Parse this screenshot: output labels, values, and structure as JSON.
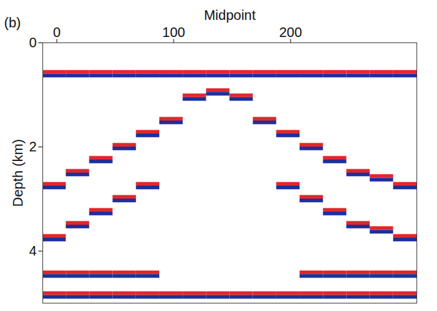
{
  "chart_data": {
    "type": "seismic",
    "panel_label": "(b)",
    "xlabel": "Midpoint",
    "ylabel": "Depth (km)",
    "xlim": [
      -12,
      308
    ],
    "xticks": [
      0,
      100,
      200
    ],
    "ylim": [
      0,
      5
    ],
    "yticks": [
      0,
      2,
      4
    ],
    "colors": [
      "#e3262b",
      "#1f2f9a"
    ],
    "gathers": [
      {
        "start": -12,
        "end": 8,
        "depths": [
          0.6,
          2.75,
          3.75,
          4.45,
          4.85
        ]
      },
      {
        "start": 8,
        "end": 28,
        "depths": [
          0.6,
          2.5,
          3.5,
          4.45,
          4.85
        ]
      },
      {
        "start": 28,
        "end": 48,
        "depths": [
          0.6,
          2.25,
          3.25,
          4.45,
          4.85
        ]
      },
      {
        "start": 48,
        "end": 68,
        "depths": [
          0.6,
          2.0,
          3.0,
          4.45,
          4.85
        ]
      },
      {
        "start": 68,
        "end": 88,
        "depths": [
          0.6,
          1.75,
          2.75,
          4.45,
          4.85
        ]
      },
      {
        "start": 88,
        "end": 108,
        "depths": [
          0.6,
          1.5,
          4.85
        ]
      },
      {
        "start": 108,
        "end": 128,
        "depths": [
          0.6,
          1.05,
          4.85
        ]
      },
      {
        "start": 128,
        "end": 148,
        "depths": [
          0.6,
          0.95,
          4.85
        ]
      },
      {
        "start": 148,
        "end": 168,
        "depths": [
          0.6,
          1.05,
          4.85
        ]
      },
      {
        "start": 168,
        "end": 188,
        "depths": [
          0.6,
          1.5,
          4.85
        ]
      },
      {
        "start": 188,
        "end": 208,
        "depths": [
          0.6,
          1.75,
          2.75,
          4.85
        ]
      },
      {
        "start": 208,
        "end": 228,
        "depths": [
          0.6,
          2.0,
          3.0,
          4.45,
          4.85
        ]
      },
      {
        "start": 228,
        "end": 248,
        "depths": [
          0.6,
          2.25,
          3.25,
          4.45,
          4.85
        ]
      },
      {
        "start": 248,
        "end": 268,
        "depths": [
          0.6,
          2.5,
          3.5,
          4.45,
          4.85
        ]
      },
      {
        "start": 268,
        "end": 288,
        "depths": [
          0.6,
          2.6,
          3.6,
          4.45,
          4.85
        ]
      },
      {
        "start": 288,
        "end": 308,
        "depths": [
          0.6,
          2.75,
          3.75,
          4.45,
          4.85
        ]
      }
    ]
  }
}
